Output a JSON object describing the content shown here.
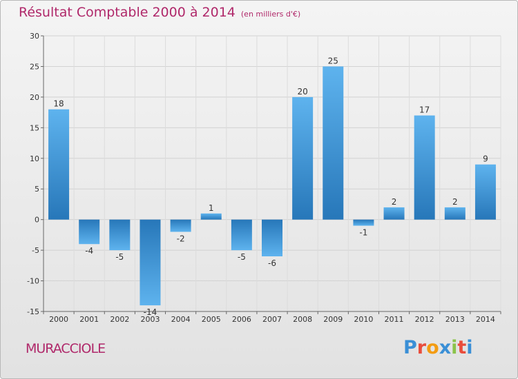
{
  "chart_data": {
    "type": "bar",
    "title": "Résultat Comptable 2000 à 2014",
    "subtitle": "(en milliers d'€)",
    "categories": [
      "2000",
      "2001",
      "2002",
      "2003",
      "2004",
      "2005",
      "2006",
      "2007",
      "2008",
      "2009",
      "2010",
      "2011",
      "2012",
      "2013",
      "2014"
    ],
    "values": [
      18,
      -4,
      -5,
      -14,
      -2,
      1,
      -5,
      -6,
      20,
      25,
      -1,
      2,
      17,
      2,
      9
    ],
    "ylim": [
      -15,
      30
    ],
    "yticks": [
      -15,
      -10,
      -5,
      0,
      5,
      10,
      15,
      20,
      25,
      30
    ],
    "xlabel": "",
    "ylabel": "",
    "grid": true
  },
  "footer": {
    "commune": "MURACCIOLE",
    "logo_text": "Proxiti",
    "logo_colors": [
      "#3a8fd6",
      "#e94d3c",
      "#f39c12",
      "#3a8fd6",
      "#8bc34a",
      "#e94d3c",
      "#3a8fd6"
    ]
  },
  "colors": {
    "bar_top": "#5eb3ee",
    "bar_bottom": "#2777b9",
    "title": "#b0286a"
  }
}
